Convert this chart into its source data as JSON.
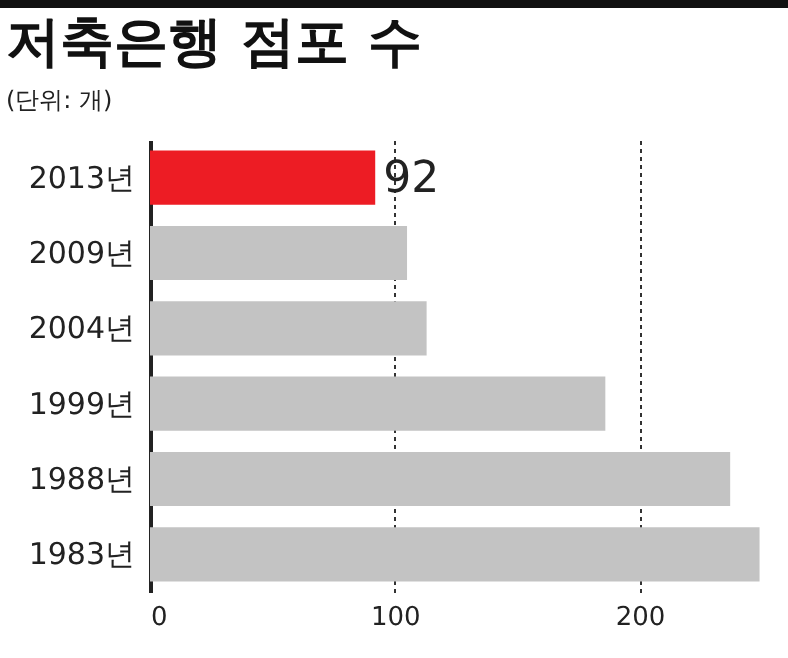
{
  "chart_data": {
    "type": "bar",
    "orientation": "horizontal",
    "title": "저축은행 점포 수",
    "subtitle": "(단위: 개)",
    "categories": [
      "2013년",
      "2009년",
      "2004년",
      "1999년",
      "1988년",
      "1983년"
    ],
    "values": [
      92,
      105,
      113,
      186,
      237,
      249
    ],
    "colors": [
      "#ed1c24",
      "#c3c3c3",
      "#c3c3c3",
      "#c3c3c3",
      "#c3c3c3",
      "#c3c3c3"
    ],
    "value_labels": [
      "92",
      null,
      null,
      null,
      null,
      null
    ],
    "xlim": [
      0,
      250
    ],
    "xticks": [
      0,
      100,
      200
    ],
    "grid": "x"
  }
}
